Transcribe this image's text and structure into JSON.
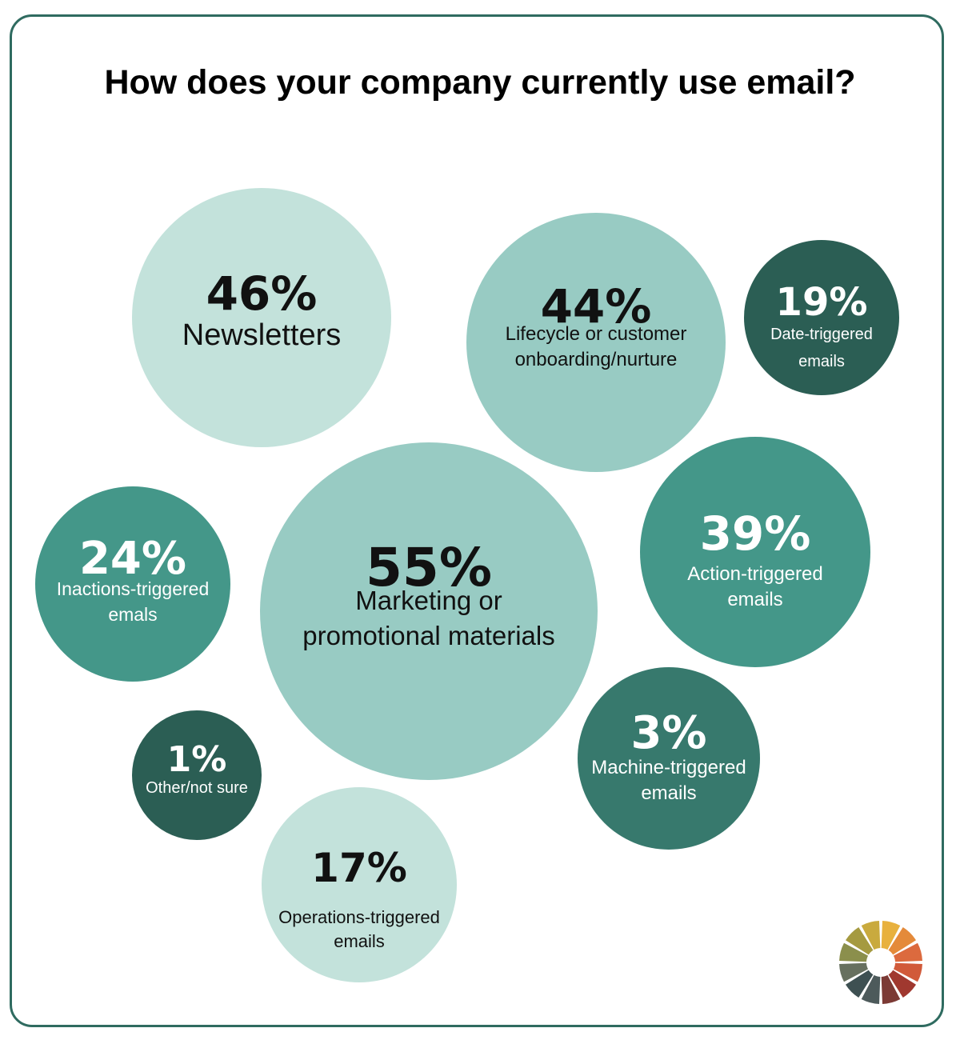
{
  "chart_data": {
    "type": "bubble",
    "title": "How does your company currently use email?",
    "unit": "%",
    "items": [
      {
        "value": 46,
        "pct_label": "46%",
        "label_lines": [
          "Newsletters"
        ],
        "color": "#c3e2db",
        "text_color": "#111111"
      },
      {
        "value": 44,
        "pct_label": "44%",
        "label_lines": [
          "Lifecycle or customer",
          "onboarding/nurture"
        ],
        "color": "#98cbc3",
        "text_color": "#111111"
      },
      {
        "value": 19,
        "pct_label": "19%",
        "label_lines": [
          "Date-triggered",
          "emails"
        ],
        "color": "#2b5e54",
        "text_color": "#ffffff"
      },
      {
        "value": 24,
        "pct_label": "24%",
        "label_lines": [
          "Inactions-triggered",
          "emals"
        ],
        "color": "#449789",
        "text_color": "#ffffff"
      },
      {
        "value": 55,
        "pct_label": "55%",
        "label_lines": [
          "Marketing or",
          "promotional materials"
        ],
        "color": "#98cbc3",
        "text_color": "#111111"
      },
      {
        "value": 39,
        "pct_label": "39%",
        "label_lines": [
          "Action-triggered",
          "emails"
        ],
        "color": "#449789",
        "text_color": "#ffffff"
      },
      {
        "value": 1,
        "pct_label": "1%",
        "label_lines": [
          "Other/not sure"
        ],
        "color": "#2b5e54",
        "text_color": "#ffffff"
      },
      {
        "value": 3,
        "pct_label": "3%",
        "label_lines": [
          "Machine-triggered",
          "emails"
        ],
        "color": "#37796d",
        "text_color": "#ffffff"
      },
      {
        "value": 17,
        "pct_label": "17%",
        "label_lines": [
          "Operations-triggered",
          "emails"
        ],
        "color": "#c3e2db",
        "text_color": "#111111"
      }
    ]
  },
  "logo": {
    "name": "color-wheel-logo",
    "colors": [
      "#e8b13e",
      "#e48a3a",
      "#dc6a3e",
      "#d15a3a",
      "#a0382f",
      "#7c3a35",
      "#4d5a5b",
      "#3e5052",
      "#67705f",
      "#8b8f4c",
      "#a59a40",
      "#c9aa3e"
    ]
  }
}
